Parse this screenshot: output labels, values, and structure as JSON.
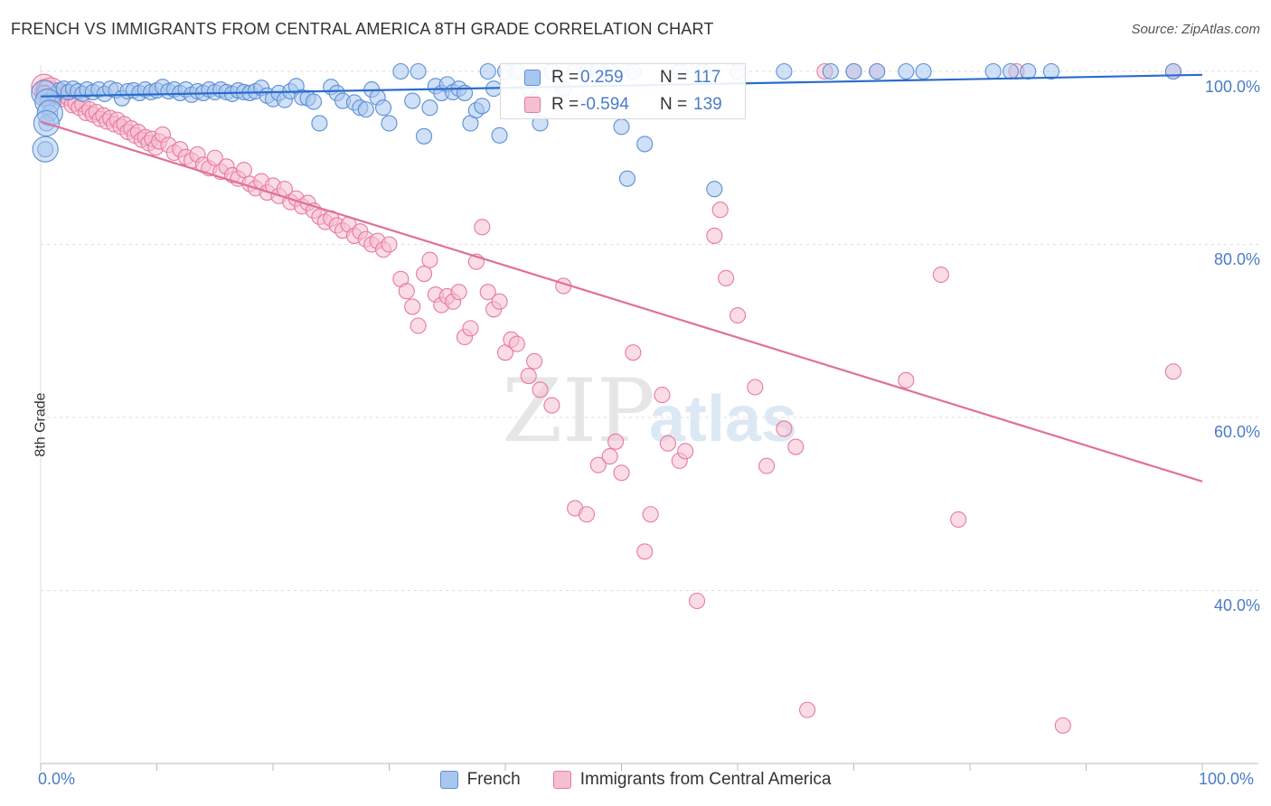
{
  "title": "FRENCH VS IMMIGRANTS FROM CENTRAL AMERICA 8TH GRADE CORRELATION CHART",
  "source": "Source: ZipAtlas.com",
  "watermark": {
    "zip": "ZIP",
    "atlas": "atlas"
  },
  "colors": {
    "blue": "#5b8fd6",
    "blue_fill": "#a9c6ee",
    "blue_line": "#2a6ccc",
    "pink": "#e8799e",
    "pink_fill": "#f6bfd1",
    "pink_line": "#e0709a",
    "tick_text": "#4a7cc7",
    "grid": "#dddddd"
  },
  "stats": [
    {
      "r_label": "R =",
      "r_value": " 0.259",
      "n_label": "N =",
      "n_value": "117"
    },
    {
      "r_label": "R =",
      "r_value": "-0.594",
      "n_label": "N =",
      "n_value": "139"
    }
  ],
  "chart_data": {
    "type": "scatter",
    "title": "FRENCH VS IMMIGRANTS FROM CENTRAL AMERICA 8TH GRADE CORRELATION CHART",
    "xlabel": "",
    "ylabel": "8th Grade",
    "xlim": [
      0,
      100
    ],
    "ylim": [
      20,
      100
    ],
    "x_tick_labels": [
      "0.0%",
      "100.0%"
    ],
    "y_ticks": [
      40,
      60,
      80,
      100
    ],
    "y_tick_labels": [
      "40.0%",
      "60.0%",
      "80.0%",
      "100.0%"
    ],
    "legend": [
      "French",
      "Immigrants from Central America"
    ],
    "series": [
      {
        "name": "French",
        "trend": {
          "x": [
            0,
            100
          ],
          "y": [
            97.1,
            99.6
          ]
        },
        "points": [
          [
            0.3,
            97.5
          ],
          [
            0.6,
            96.5
          ],
          [
            0.8,
            95.2
          ],
          [
            0.5,
            94.0
          ],
          [
            0.4,
            91.0
          ],
          [
            1.2,
            97.3
          ],
          [
            1.6,
            97.8
          ],
          [
            2.0,
            98.0
          ],
          [
            2.4,
            97.6
          ],
          [
            2.8,
            98.0
          ],
          [
            3.2,
            97.7
          ],
          [
            3.6,
            97.4
          ],
          [
            4.0,
            97.9
          ],
          [
            4.5,
            97.6
          ],
          [
            5.0,
            97.9
          ],
          [
            5.5,
            97.4
          ],
          [
            6.0,
            98.0
          ],
          [
            6.5,
            97.8
          ],
          [
            7.0,
            96.9
          ],
          [
            7.5,
            97.7
          ],
          [
            8.0,
            97.8
          ],
          [
            8.5,
            97.5
          ],
          [
            9.0,
            97.9
          ],
          [
            9.5,
            97.6
          ],
          [
            10.0,
            97.8
          ],
          [
            10.5,
            98.2
          ],
          [
            11.0,
            97.7
          ],
          [
            11.5,
            97.9
          ],
          [
            12.0,
            97.5
          ],
          [
            12.5,
            97.9
          ],
          [
            13.0,
            97.3
          ],
          [
            13.5,
            97.7
          ],
          [
            14.0,
            97.5
          ],
          [
            14.5,
            97.9
          ],
          [
            15.0,
            97.6
          ],
          [
            15.5,
            97.9
          ],
          [
            16.0,
            97.6
          ],
          [
            16.5,
            97.4
          ],
          [
            17.0,
            97.8
          ],
          [
            17.5,
            97.6
          ],
          [
            18.0,
            97.5
          ],
          [
            18.5,
            97.7
          ],
          [
            19.0,
            98.1
          ],
          [
            19.5,
            97.2
          ],
          [
            20.0,
            96.8
          ],
          [
            20.5,
            97.5
          ],
          [
            21.0,
            96.7
          ],
          [
            21.5,
            97.7
          ],
          [
            22.0,
            98.3
          ],
          [
            22.5,
            97.0
          ],
          [
            23.0,
            96.9
          ],
          [
            23.5,
            96.5
          ],
          [
            24.0,
            94.0
          ],
          [
            25.0,
            98.2
          ],
          [
            25.5,
            97.5
          ],
          [
            26.0,
            96.6
          ],
          [
            27.0,
            96.4
          ],
          [
            27.5,
            95.8
          ],
          [
            28.0,
            95.6
          ],
          [
            28.5,
            97.9
          ],
          [
            29.0,
            97.0
          ],
          [
            29.5,
            95.8
          ],
          [
            30.0,
            94.0
          ],
          [
            31.0,
            100.0
          ],
          [
            32.0,
            96.6
          ],
          [
            32.5,
            100.0
          ],
          [
            33.0,
            92.5
          ],
          [
            33.5,
            95.8
          ],
          [
            34.0,
            98.3
          ],
          [
            34.5,
            97.5
          ],
          [
            35.0,
            98.5
          ],
          [
            35.5,
            97.6
          ],
          [
            36.0,
            98.0
          ],
          [
            36.5,
            97.5
          ],
          [
            37.0,
            94.0
          ],
          [
            37.5,
            95.5
          ],
          [
            38.0,
            96.0
          ],
          [
            38.5,
            100.0
          ],
          [
            39.0,
            98.0
          ],
          [
            39.5,
            92.6
          ],
          [
            40.0,
            100.0
          ],
          [
            41.0,
            100.0
          ],
          [
            42.0,
            98.0
          ],
          [
            42.5,
            96.5
          ],
          [
            43.0,
            94.0
          ],
          [
            44.0,
            100.0
          ],
          [
            45.0,
            98.0
          ],
          [
            46.0,
            100.0
          ],
          [
            47.0,
            100.0
          ],
          [
            48.0,
            100.0
          ],
          [
            49.0,
            100.0
          ],
          [
            50.0,
            93.6
          ],
          [
            50.5,
            87.6
          ],
          [
            51.0,
            100.0
          ],
          [
            52.0,
            91.6
          ],
          [
            55.0,
            100.0
          ],
          [
            57.0,
            100.0
          ],
          [
            58.0,
            86.4
          ],
          [
            60.0,
            100.0
          ],
          [
            64.0,
            100.0
          ],
          [
            68.0,
            100.0
          ],
          [
            70.0,
            100.0
          ],
          [
            72.0,
            100.0
          ],
          [
            74.5,
            100.0
          ],
          [
            76.0,
            100.0
          ],
          [
            82.0,
            100.0
          ],
          [
            83.5,
            100.0
          ],
          [
            85.0,
            100.0
          ],
          [
            87.0,
            100.0
          ],
          [
            97.5,
            100.0
          ]
        ],
        "large_points": [
          [
            0.3,
            97.5
          ],
          [
            0.6,
            96.5
          ],
          [
            0.8,
            95.2
          ],
          [
            0.5,
            94.0
          ],
          [
            0.4,
            91.0
          ]
        ]
      },
      {
        "name": "Immigrants from Central America",
        "trend": {
          "x": [
            0,
            100
          ],
          "y": [
            94.2,
            52.6
          ]
        },
        "points": [
          [
            0.3,
            98.2
          ],
          [
            0.6,
            97.5
          ],
          [
            0.9,
            97.8
          ],
          [
            1.2,
            97.4
          ],
          [
            1.5,
            97.0
          ],
          [
            1.8,
            96.8
          ],
          [
            2.1,
            97.6
          ],
          [
            2.4,
            96.9
          ],
          [
            2.7,
            96.1
          ],
          [
            3.0,
            96.3
          ],
          [
            3.3,
            95.8
          ],
          [
            3.6,
            96.2
          ],
          [
            3.9,
            95.2
          ],
          [
            4.2,
            95.6
          ],
          [
            4.5,
            95.0
          ],
          [
            4.8,
            95.3
          ],
          [
            5.1,
            94.5
          ],
          [
            5.4,
            94.9
          ],
          [
            5.7,
            94.2
          ],
          [
            6.0,
            94.6
          ],
          [
            6.3,
            93.9
          ],
          [
            6.6,
            94.4
          ],
          [
            6.9,
            93.6
          ],
          [
            7.2,
            93.9
          ],
          [
            7.5,
            93.0
          ],
          [
            7.8,
            93.4
          ],
          [
            8.1,
            92.6
          ],
          [
            8.4,
            93.0
          ],
          [
            8.7,
            92.1
          ],
          [
            9.0,
            92.4
          ],
          [
            9.3,
            91.7
          ],
          [
            9.6,
            92.2
          ],
          [
            9.9,
            91.2
          ],
          [
            10.2,
            91.9
          ],
          [
            10.5,
            92.7
          ],
          [
            11.0,
            91.5
          ],
          [
            11.5,
            90.6
          ],
          [
            12.0,
            91.0
          ],
          [
            12.5,
            90.1
          ],
          [
            13.0,
            89.7
          ],
          [
            13.5,
            90.4
          ],
          [
            14.0,
            89.2
          ],
          [
            14.5,
            88.8
          ],
          [
            15.0,
            90.0
          ],
          [
            15.5,
            88.4
          ],
          [
            16.0,
            89.0
          ],
          [
            16.5,
            88.0
          ],
          [
            17.0,
            87.6
          ],
          [
            17.5,
            88.6
          ],
          [
            18.0,
            87.0
          ],
          [
            18.5,
            86.5
          ],
          [
            19.0,
            87.3
          ],
          [
            19.5,
            86.0
          ],
          [
            20.0,
            86.8
          ],
          [
            20.5,
            85.6
          ],
          [
            21.0,
            86.4
          ],
          [
            21.5,
            84.9
          ],
          [
            22.0,
            85.3
          ],
          [
            22.5,
            84.4
          ],
          [
            23.0,
            84.8
          ],
          [
            23.5,
            83.9
          ],
          [
            24.0,
            83.2
          ],
          [
            24.5,
            82.6
          ],
          [
            25.0,
            83.0
          ],
          [
            25.5,
            82.2
          ],
          [
            26.0,
            81.6
          ],
          [
            26.5,
            82.3
          ],
          [
            27.0,
            81.0
          ],
          [
            27.5,
            81.5
          ],
          [
            28.0,
            80.6
          ],
          [
            28.5,
            80.0
          ],
          [
            29.0,
            80.4
          ],
          [
            29.5,
            79.4
          ],
          [
            30.0,
            80.0
          ],
          [
            31.0,
            76.0
          ],
          [
            31.5,
            74.6
          ],
          [
            32.0,
            72.8
          ],
          [
            32.5,
            70.6
          ],
          [
            33.0,
            76.6
          ],
          [
            33.5,
            78.2
          ],
          [
            34.0,
            74.2
          ],
          [
            34.5,
            73.0
          ],
          [
            35.0,
            74.0
          ],
          [
            35.5,
            73.4
          ],
          [
            36.0,
            74.5
          ],
          [
            36.5,
            69.3
          ],
          [
            37.0,
            70.3
          ],
          [
            37.5,
            78.0
          ],
          [
            38.0,
            82.0
          ],
          [
            38.5,
            74.5
          ],
          [
            39.0,
            72.5
          ],
          [
            39.5,
            73.4
          ],
          [
            40.0,
            67.5
          ],
          [
            40.5,
            69.0
          ],
          [
            41.0,
            68.5
          ],
          [
            42.0,
            64.8
          ],
          [
            42.5,
            66.5
          ],
          [
            43.0,
            63.2
          ],
          [
            44.0,
            61.4
          ],
          [
            45.0,
            75.2
          ],
          [
            46.0,
            49.5
          ],
          [
            47.0,
            48.8
          ],
          [
            48.0,
            54.5
          ],
          [
            49.0,
            55.5
          ],
          [
            49.5,
            57.2
          ],
          [
            50.0,
            53.6
          ],
          [
            51.0,
            67.5
          ],
          [
            52.0,
            44.5
          ],
          [
            52.5,
            48.8
          ],
          [
            53.5,
            62.6
          ],
          [
            54.0,
            57.0
          ],
          [
            55.0,
            55.0
          ],
          [
            55.5,
            56.1
          ],
          [
            56.5,
            38.8
          ],
          [
            58.0,
            81.0
          ],
          [
            58.5,
            84.0
          ],
          [
            59.0,
            76.1
          ],
          [
            60.0,
            71.8
          ],
          [
            61.5,
            63.5
          ],
          [
            62.5,
            54.4
          ],
          [
            64.0,
            58.7
          ],
          [
            65.0,
            56.6
          ],
          [
            66.0,
            26.2
          ],
          [
            67.5,
            100.0
          ],
          [
            70.0,
            100.0
          ],
          [
            72.0,
            100.0
          ],
          [
            74.5,
            64.3
          ],
          [
            77.5,
            76.5
          ],
          [
            79.0,
            48.2
          ],
          [
            84.0,
            100.0
          ],
          [
            88.0,
            24.4
          ],
          [
            97.5,
            100.0
          ],
          [
            97.5,
            65.3
          ]
        ],
        "large_points": [
          [
            0.3,
            98.2
          ],
          [
            0.6,
            97.5
          ],
          [
            0.9,
            97.8
          ]
        ]
      }
    ]
  }
}
